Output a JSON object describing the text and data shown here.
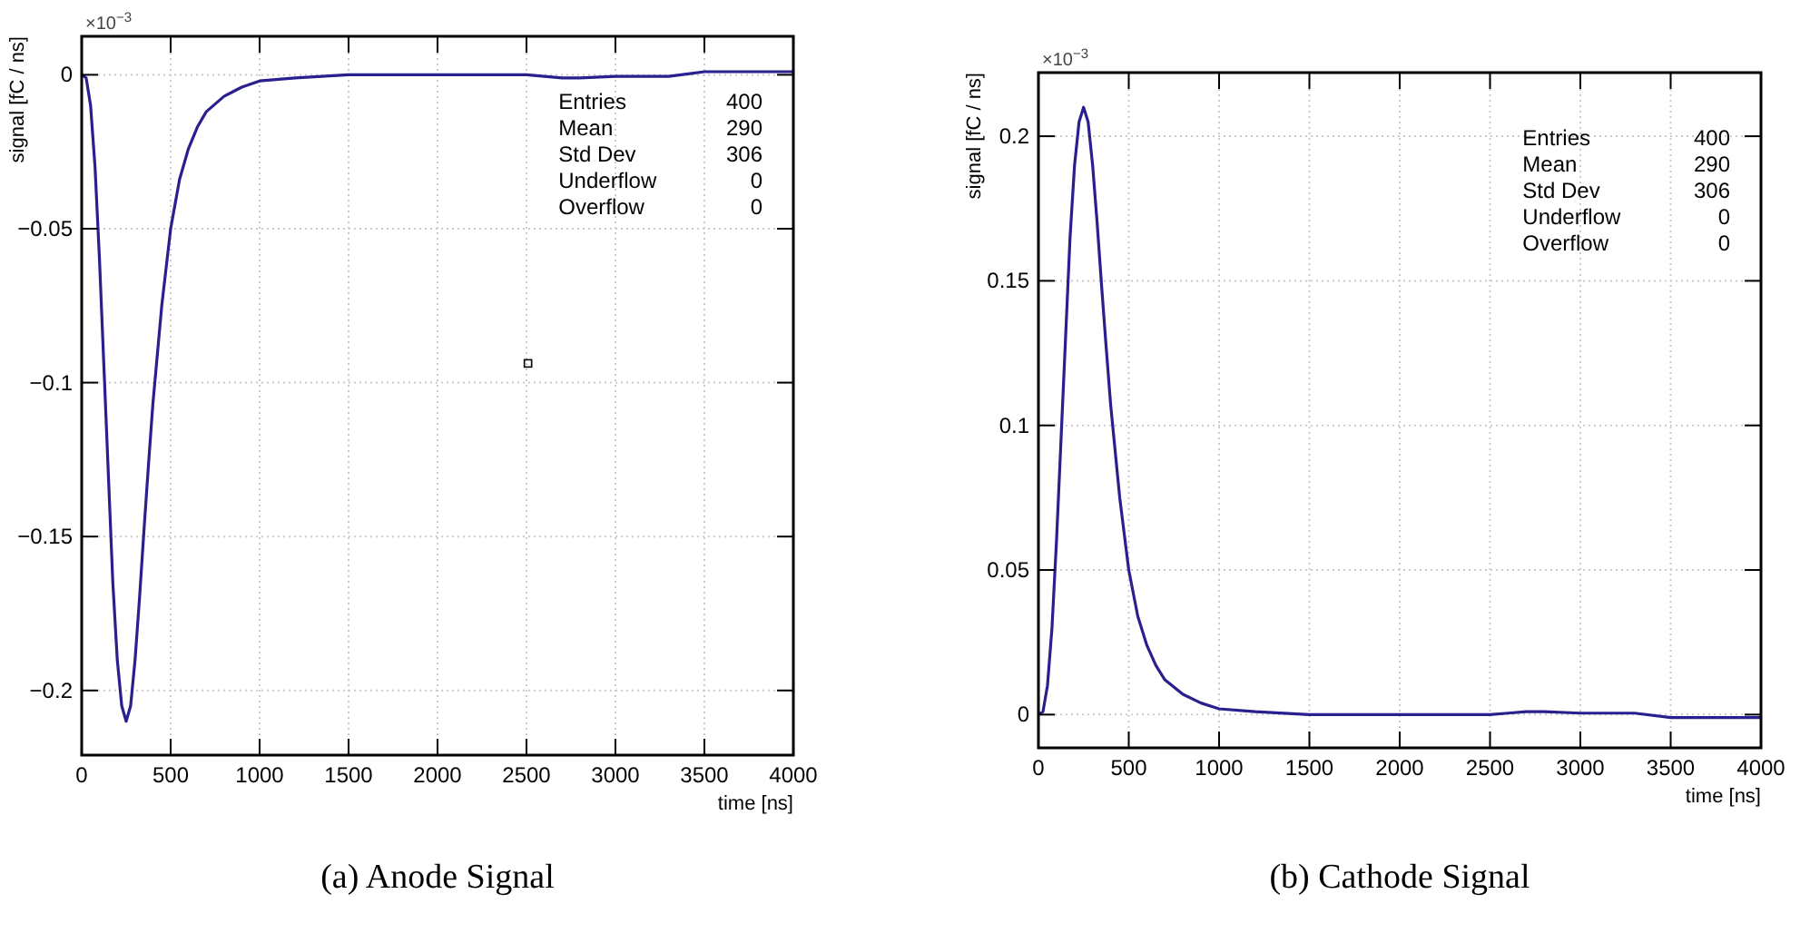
{
  "chart_data": [
    {
      "type": "line",
      "title": "(a) Anode Signal",
      "xlabel": "time [ns]",
      "ylabel": "signal [fC / ns]",
      "xlim": [
        0,
        4000
      ],
      "xticks": [
        0,
        500,
        1000,
        1500,
        2000,
        2500,
        3000,
        3500,
        4000
      ],
      "ylim": [
        -0.221,
        0.0125
      ],
      "yticks": [
        {
          "value": 0,
          "label": "0"
        },
        {
          "value": -0.05,
          "label": "−0.05"
        },
        {
          "value": -0.1,
          "label": "−0.1"
        },
        {
          "value": -0.15,
          "label": "−0.15"
        },
        {
          "value": -0.2,
          "label": "−0.2"
        }
      ],
      "grid": true,
      "annotations": [
        "×10$^{−3}$",
        "Entries",
        "400",
        "Mean",
        "290",
        "Std Dev",
        "306",
        "Underflow",
        "0",
        "Overflow",
        "0"
      ],
      "series": [
        {
          "color": "#2a1f8f",
          "x": [
            0,
            25,
            50,
            75,
            100,
            125,
            150,
            175,
            200,
            225,
            250,
            275,
            300,
            325,
            350,
            375,
            400,
            450,
            500,
            550,
            600,
            650,
            700,
            800,
            900,
            1000,
            1200,
            1500,
            2000,
            2500,
            2600,
            2700,
            2800,
            3000,
            3300,
            3500,
            3700,
            4000
          ],
          "values": [
            0,
            -0.001,
            -0.01,
            -0.03,
            -0.06,
            -0.095,
            -0.13,
            -0.165,
            -0.19,
            -0.205,
            -0.21,
            -0.205,
            -0.19,
            -0.17,
            -0.148,
            -0.127,
            -0.107,
            -0.075,
            -0.05,
            -0.034,
            -0.024,
            -0.017,
            -0.012,
            -0.007,
            -0.004,
            -0.002,
            -0.001,
            0,
            0,
            0,
            -0.0005,
            -0.001,
            -0.001,
            -0.0005,
            -0.0005,
            0.001,
            0.001,
            0.001
          ]
        }
      ]
    },
    {
      "type": "line",
      "title": "(b) Cathode Signal",
      "xlabel": "time [ns]",
      "ylabel": "signal [fC / ns]",
      "xlim": [
        0,
        4000
      ],
      "xticks": [
        0,
        500,
        1000,
        1500,
        2000,
        2500,
        3000,
        3500,
        4000
      ],
      "ylim": [
        -0.0115,
        0.222
      ],
      "yticks": [
        0,
        0.05,
        0.1,
        0.15,
        0.2
      ],
      "grid": true,
      "annotations": [
        "×10$^{−3}$",
        "Entries",
        "400",
        "Mean",
        "290",
        "Std Dev",
        "306",
        "Underflow",
        "0",
        "Overflow",
        "0"
      ],
      "series": [
        {
          "color": "#2a1f8f",
          "x": [
            0,
            25,
            50,
            75,
            100,
            125,
            150,
            175,
            200,
            225,
            250,
            275,
            300,
            325,
            350,
            375,
            400,
            450,
            500,
            550,
            600,
            650,
            700,
            800,
            900,
            1000,
            1200,
            1500,
            2000,
            2500,
            2600,
            2700,
            2800,
            3000,
            3300,
            3500,
            3700,
            4000
          ],
          "values": [
            0,
            0.001,
            0.01,
            0.03,
            0.06,
            0.095,
            0.13,
            0.165,
            0.19,
            0.205,
            0.21,
            0.205,
            0.19,
            0.17,
            0.148,
            0.127,
            0.107,
            0.075,
            0.05,
            0.034,
            0.024,
            0.017,
            0.012,
            0.007,
            0.004,
            0.002,
            0.001,
            0,
            0,
            0,
            0.0005,
            0.001,
            0.001,
            0.0005,
            0.0005,
            -0.001,
            -0.001,
            -0.001
          ]
        }
      ]
    }
  ]
}
